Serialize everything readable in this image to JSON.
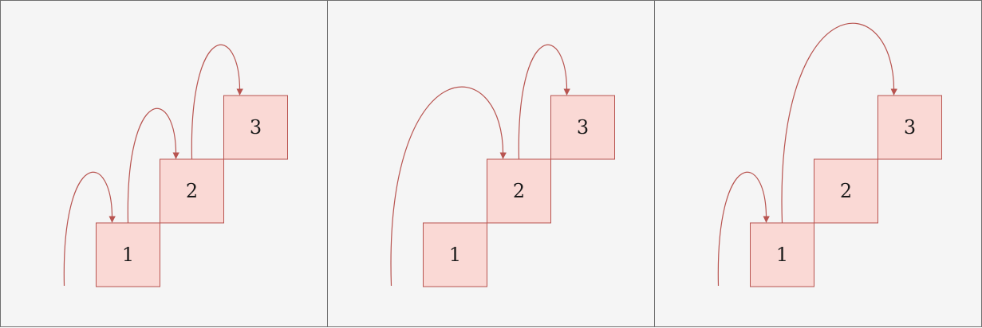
{
  "colors": {
    "panel_fill": "#f5f5f5",
    "panel_border": "#6e6e6e",
    "step_fill": "#fad9d5",
    "step_border": "#b85450",
    "arrow": "#b85450"
  },
  "panels": [
    {
      "steps": [
        "1",
        "2",
        "3"
      ],
      "jumps": [
        {
          "from": "ground",
          "to": "1"
        },
        {
          "from": "1",
          "to": "2"
        },
        {
          "from": "2",
          "to": "3"
        }
      ]
    },
    {
      "steps": [
        "1",
        "2",
        "3"
      ],
      "jumps": [
        {
          "from": "ground",
          "to": "2"
        },
        {
          "from": "2",
          "to": "3"
        }
      ]
    },
    {
      "steps": [
        "1",
        "2",
        "3"
      ],
      "jumps": [
        {
          "from": "ground",
          "to": "1"
        },
        {
          "from": "1",
          "to": "3"
        }
      ]
    }
  ]
}
